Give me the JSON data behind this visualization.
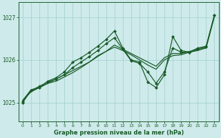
{
  "bg_color": "#ceeaea",
  "grid_color": "#9ecece",
  "line_color": "#1a5c2a",
  "xlabel": "Graphe pression niveau de la mer (hPa)",
  "ylim": [
    1024.55,
    1027.35
  ],
  "xlim": [
    -0.5,
    23.5
  ],
  "yticks": [
    1025,
    1026,
    1027
  ],
  "xticks": [
    0,
    1,
    2,
    3,
    4,
    5,
    6,
    7,
    8,
    9,
    10,
    11,
    12,
    13,
    14,
    15,
    16,
    17,
    18,
    19,
    20,
    21,
    22,
    23
  ],
  "series": [
    {
      "y": [
        1025.05,
        1025.3,
        1025.35,
        1025.45,
        1025.55,
        1025.65,
        1025.75,
        1025.85,
        1025.95,
        1026.1,
        1026.2,
        1026.35,
        1026.25,
        1026.15,
        1026.05,
        1025.95,
        1025.85,
        1026.05,
        1026.15,
        1026.15,
        1026.2,
        1026.25,
        1026.3,
        1027.05
      ],
      "marker": false,
      "lw": 0.9
    },
    {
      "y": [
        1025.05,
        1025.25,
        1025.35,
        1025.45,
        1025.5,
        1025.6,
        1025.7,
        1025.82,
        1025.95,
        1026.08,
        1026.2,
        1026.3,
        1026.22,
        1026.12,
        1026.0,
        1025.88,
        1025.78,
        1026.0,
        1026.1,
        1026.12,
        1026.18,
        1026.22,
        1026.28,
        1027.02
      ],
      "marker": false,
      "lw": 0.9
    },
    {
      "y": [
        1025.02,
        1025.28,
        1025.38,
        1025.48,
        1025.55,
        1025.65,
        1025.82,
        1025.95,
        1026.08,
        1026.22,
        1026.38,
        1026.52,
        1026.25,
        1025.98,
        1025.92,
        1025.72,
        1025.45,
        1025.72,
        1026.28,
        1026.18,
        1026.18,
        1026.28,
        1026.32,
        1027.05
      ],
      "marker": true,
      "lw": 0.9
    },
    {
      "y": [
        1025.0,
        1025.28,
        1025.35,
        1025.5,
        1025.58,
        1025.72,
        1025.95,
        1026.05,
        1026.18,
        1026.32,
        1026.48,
        1026.68,
        1026.28,
        1026.0,
        1025.95,
        1025.48,
        1025.35,
        1025.65,
        1026.55,
        1026.22,
        1026.18,
        1026.25,
        1026.3,
        1027.05
      ],
      "marker": true,
      "lw": 0.9
    }
  ]
}
